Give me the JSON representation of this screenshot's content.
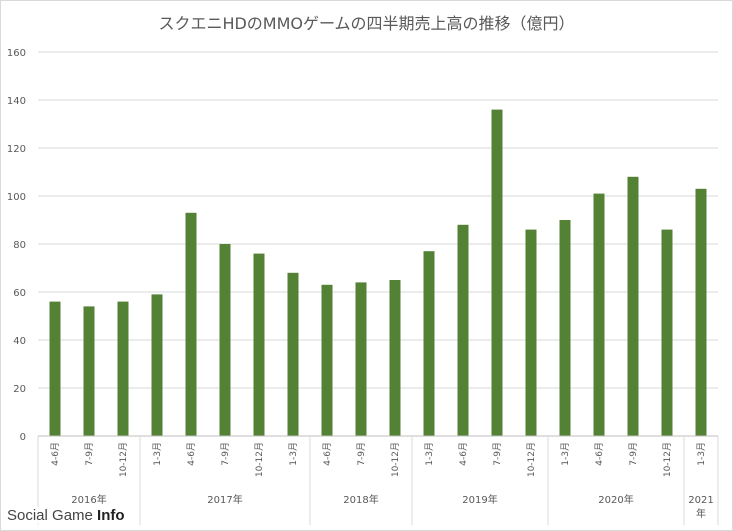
{
  "chart_data": {
    "type": "bar",
    "title": "スクエニHDのMMOゲームの四半期売上高の推移（億円）",
    "categories": [
      "4-6月",
      "7-9月",
      "10-12月",
      "1-3月",
      "4-6月",
      "7-9月",
      "10-12月",
      "1-3月",
      "4-6月",
      "7-9月",
      "10-12月",
      "1-3月",
      "4-6月",
      "7-9月",
      "10-12月",
      "1-3月",
      "4-6月",
      "7-9月",
      "10-12月",
      "1-3月"
    ],
    "values": [
      56,
      54,
      56,
      59,
      93,
      80,
      76,
      68,
      63,
      64,
      65,
      77,
      88,
      136,
      86,
      90,
      101,
      108,
      86,
      103
    ],
    "year_groups": [
      {
        "label": "2016年",
        "start": 0,
        "count": 3
      },
      {
        "label": "2017年",
        "start": 3,
        "count": 5
      },
      {
        "label": "2018年",
        "start": 8,
        "count": 3
      },
      {
        "label": "2019年",
        "start": 11,
        "count": 4
      },
      {
        "label": "2020年",
        "start": 15,
        "count": 4
      },
      {
        "label": "2021年",
        "start": 19,
        "count": 1
      }
    ],
    "ylim": [
      0,
      160
    ],
    "yticks": [
      0,
      20,
      40,
      60,
      80,
      100,
      120,
      140,
      160
    ],
    "xlabel": "",
    "ylabel": "",
    "grid": true,
    "bar_color": "#548235",
    "grid_color": "#d9d9d9"
  },
  "watermark": {
    "text_a": "Social Game ",
    "text_b": "Info"
  }
}
